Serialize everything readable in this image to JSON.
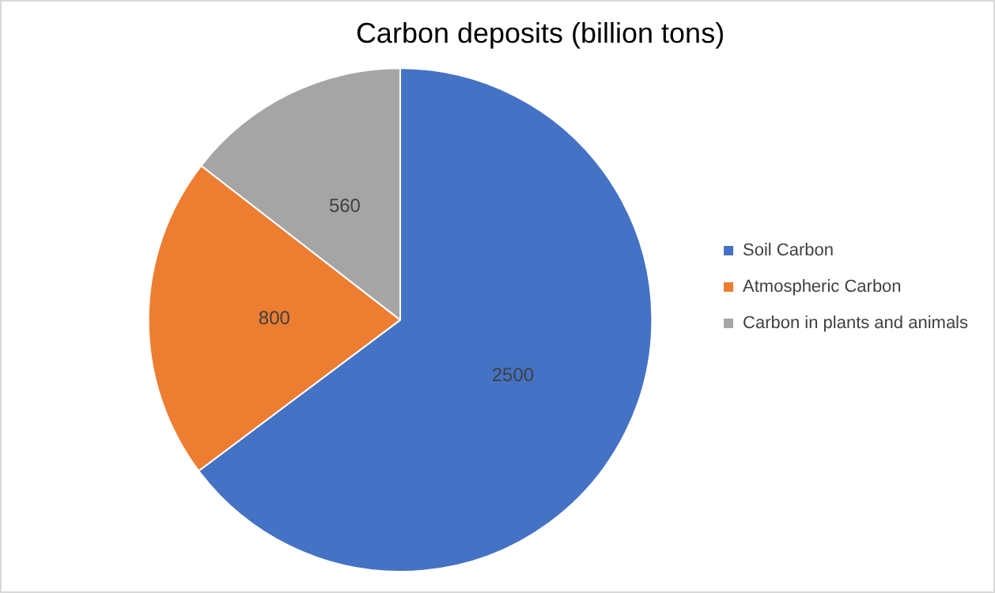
{
  "chart_data": {
    "type": "pie",
    "title": "Carbon deposits (billion tons)",
    "categories": [
      "Soil Carbon",
      "Atmospheric Carbon",
      "Carbon in plants and animals"
    ],
    "values": [
      2500,
      800,
      560
    ],
    "colors": [
      "#4472c4",
      "#ed7d31",
      "#a5a5a5"
    ],
    "data_labels": true,
    "legend": "right"
  }
}
